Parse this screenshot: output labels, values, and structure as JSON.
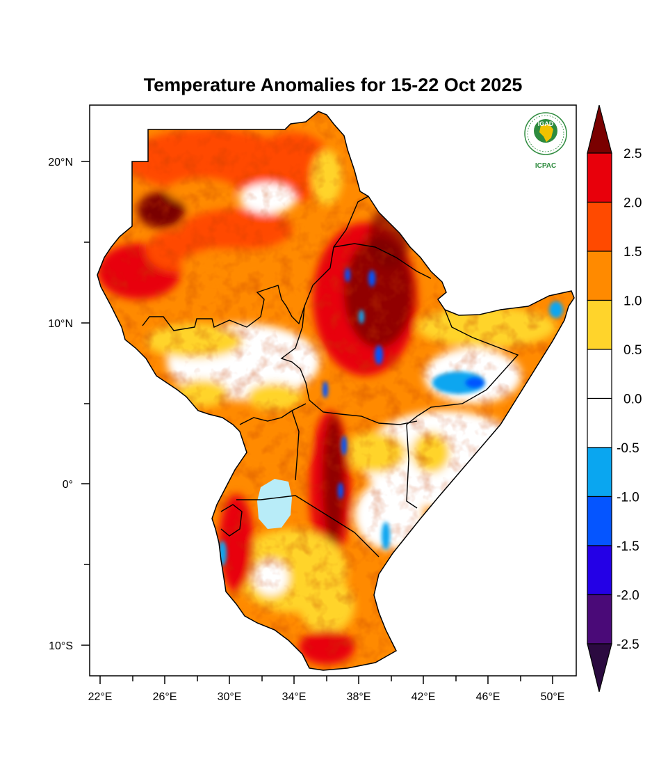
{
  "title": "Temperature Anomalies for 15-22 Oct 2025",
  "axes": {
    "x_labels": [
      "22°E",
      "26°E",
      "30°E",
      "34°E",
      "38°E",
      "42°E",
      "46°E",
      "50°E"
    ],
    "y_labels": [
      "20°N",
      "10°N",
      "0°",
      "10°S"
    ]
  },
  "colorbar": {
    "labels": [
      "2.5",
      "2.0",
      "1.5",
      "1.0",
      "0.5",
      "0.0",
      "-0.5",
      "-1.0",
      "-1.5",
      "-2.0",
      "-2.5"
    ],
    "colors": [
      "#e8000b",
      "#ff4a00",
      "#ff8a00",
      "#ffd42b",
      "#ffffff",
      "#ffffff",
      "#0aa6f0",
      "#0555ff",
      "#2400e6",
      "#4a0a78"
    ],
    "over_color": "#7a0000",
    "under_color": "#2b0a40"
  },
  "logo": {
    "top_text": "IGAD",
    "bottom_text": "ICPAC"
  },
  "palette": {
    "dark_red": "#7a0000",
    "red": "#e8000b",
    "orange_red": "#ff4a00",
    "orange": "#ff8a00",
    "yellow": "#ffd42b",
    "white": "#ffffff",
    "light_blue": "#0aa6f0",
    "blue": "#0555ff",
    "lake": "#b8ecf8"
  }
}
